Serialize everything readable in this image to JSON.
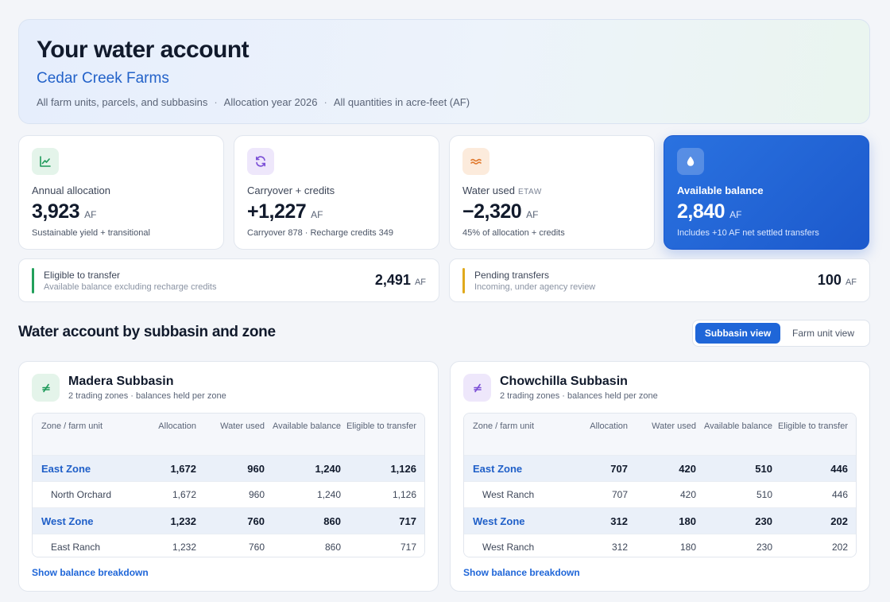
{
  "header": {
    "title": "Your water account",
    "farm": "Cedar Creek Farms",
    "meta": [
      "All farm units, parcels, and subbasins",
      "Allocation year 2026",
      "All quantities in acre-feet (AF)"
    ],
    "separator": "·"
  },
  "stats": [
    {
      "label": "Annual allocation",
      "tag": "",
      "value": "3,923",
      "unit": "AF",
      "sub": "Sustainable yield + transitional",
      "icon": "chart-line-icon",
      "color": "#1e9a5a"
    },
    {
      "label": "Carryover + credits",
      "tag": "",
      "value": "+1,227",
      "unit": "AF",
      "sub": "Carryover 878 · Recharge credits 349",
      "icon": "refresh-icon",
      "color": "#7b4fd6"
    },
    {
      "label": "Water used",
      "tag": "ETAW",
      "value": "−2,320",
      "unit": "AF",
      "sub": "45% of allocation + credits",
      "icon": "waves-icon",
      "color": "#e07a2f"
    },
    {
      "label": "Available balance",
      "tag": "",
      "value": "2,840",
      "unit": "AF",
      "sub": "Includes +10 AF net settled transfers",
      "icon": "droplet-icon",
      "color": "#ffffff"
    }
  ],
  "transfers": {
    "eligible": {
      "title": "Eligible to transfer",
      "sub": "Available balance excluding recharge credits",
      "value": "2,491",
      "unit": "AF",
      "color": "#22a05b"
    },
    "pending": {
      "title": "Pending transfers",
      "sub": "Incoming, under agency review",
      "value": "100",
      "unit": "AF",
      "color": "#e0a91c"
    }
  },
  "section": {
    "title": "Water account by subbasin and zone",
    "view_options": {
      "active": "Subbasin view",
      "inactive": "Farm unit view"
    }
  },
  "columns": [
    "Zone / farm unit",
    "Allocation",
    "Water used",
    "Available balance",
    "Eligible to transfer"
  ],
  "basins": [
    {
      "name": "Madera Subbasin",
      "sub": "2 trading zones · balances held per zone",
      "icon_color": "#1e9a5a",
      "rows": [
        {
          "type": "zone",
          "name": "East Zone",
          "allocation": "1,672",
          "used": "960",
          "available": "1,240",
          "eligible": "1,126"
        },
        {
          "type": "unit",
          "name": "North Orchard",
          "allocation": "1,672",
          "used": "960",
          "available": "1,240",
          "eligible": "1,126"
        },
        {
          "type": "zone",
          "name": "West Zone",
          "allocation": "1,232",
          "used": "760",
          "available": "860",
          "eligible": "717"
        },
        {
          "type": "unit",
          "name": "East Ranch",
          "allocation": "1,232",
          "used": "760",
          "available": "860",
          "eligible": "717"
        }
      ],
      "link": "Show balance breakdown"
    },
    {
      "name": "Chowchilla Subbasin",
      "sub": "2 trading zones · balances held per zone",
      "icon_color": "#7b4fd6",
      "rows": [
        {
          "type": "zone",
          "name": "East Zone",
          "allocation": "707",
          "used": "420",
          "available": "510",
          "eligible": "446"
        },
        {
          "type": "unit",
          "name": "West Ranch",
          "allocation": "707",
          "used": "420",
          "available": "510",
          "eligible": "446"
        },
        {
          "type": "zone",
          "name": "West Zone",
          "allocation": "312",
          "used": "180",
          "available": "230",
          "eligible": "202"
        },
        {
          "type": "unit",
          "name": "West Ranch",
          "allocation": "312",
          "used": "180",
          "available": "230",
          "eligible": "202"
        }
      ],
      "link": "Show balance breakdown"
    }
  ]
}
